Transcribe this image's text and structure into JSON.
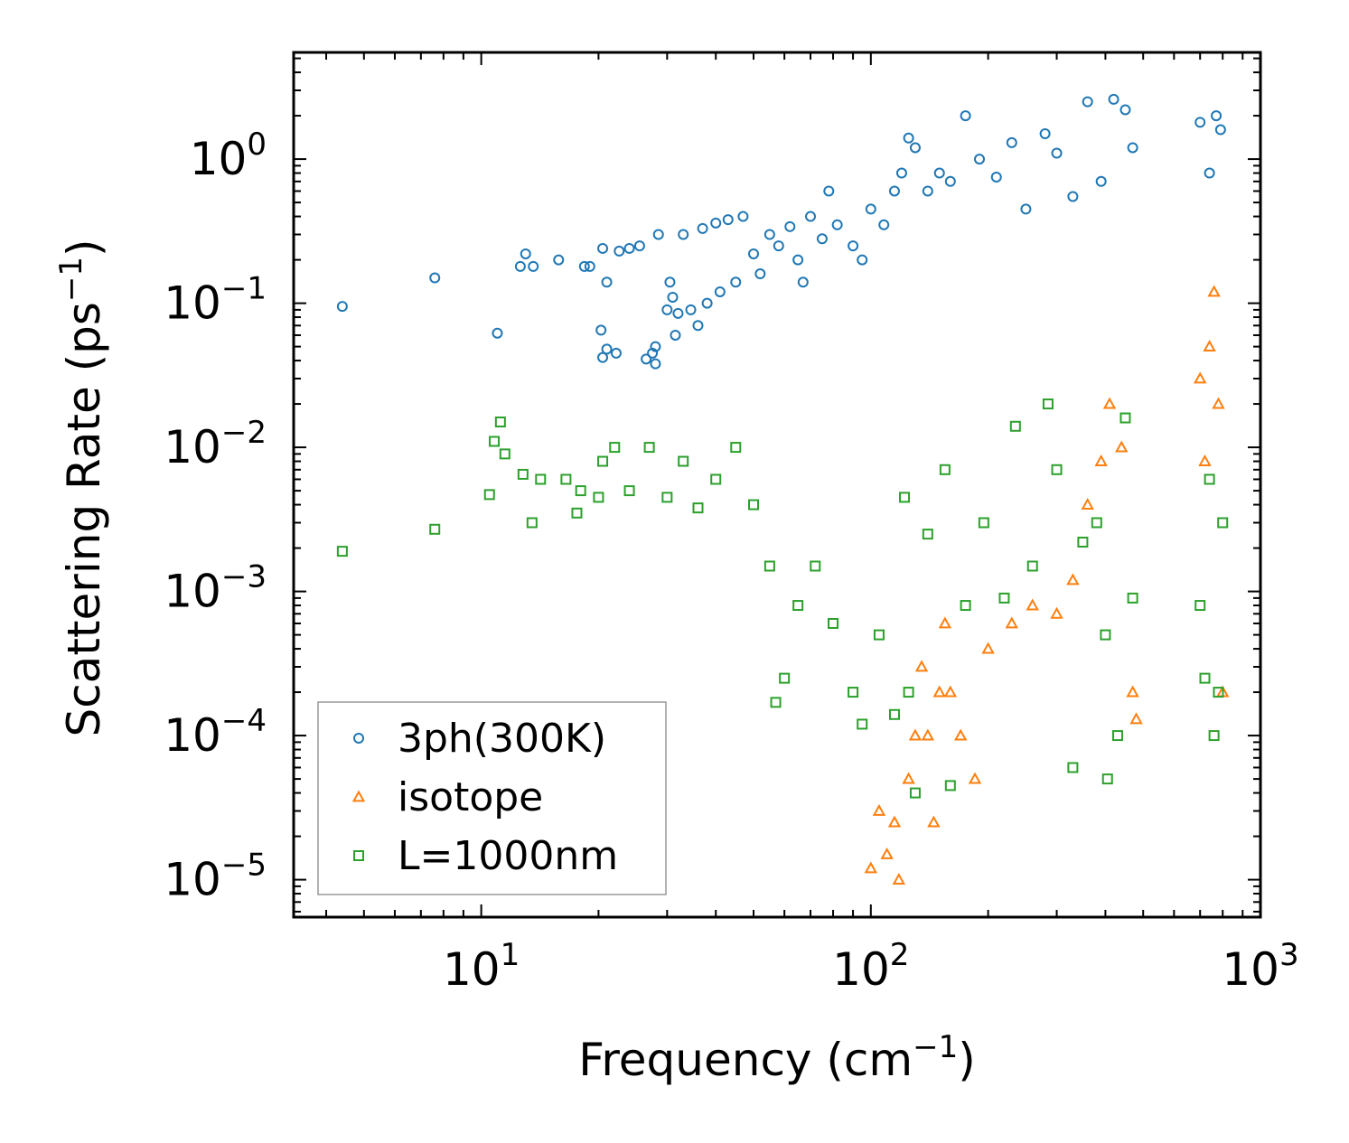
{
  "chart_data": {
    "type": "scatter",
    "title": "",
    "xlabel": "Frequency (cm",
    "xlabel_sup": "−1",
    "xlabel_end": ")",
    "ylabel": "Scattering Rate (ps",
    "ylabel_sup": "−1",
    "ylabel_end": ")",
    "xscale": "log",
    "yscale": "log",
    "xlim": [
      3.3,
      1000
    ],
    "ylim": [
      5.5e-06,
      5.5
    ],
    "xticks": [
      {
        "value": 10,
        "base": "10",
        "exp": "1"
      },
      {
        "value": 100,
        "base": "10",
        "exp": "2"
      },
      {
        "value": 1000,
        "base": "10",
        "exp": "3"
      }
    ],
    "yticks": [
      {
        "value": 1e-05,
        "base": "10",
        "exp": "−5"
      },
      {
        "value": 0.0001,
        "base": "10",
        "exp": "−4"
      },
      {
        "value": 0.001,
        "base": "10",
        "exp": "−3"
      },
      {
        "value": 0.01,
        "base": "10",
        "exp": "−2"
      },
      {
        "value": 0.1,
        "base": "10",
        "exp": "−1"
      },
      {
        "value": 1,
        "base": "10",
        "exp": "0"
      }
    ],
    "legend_position": "lower-left",
    "series": [
      {
        "name": "3ph(300K)",
        "marker": "circle",
        "color": "#1f77b4",
        "points": [
          [
            4.4,
            0.095
          ],
          [
            7.6,
            0.15
          ],
          [
            11.0,
            0.062
          ],
          [
            12.6,
            0.18
          ],
          [
            13.0,
            0.22
          ],
          [
            13.6,
            0.18
          ],
          [
            15.8,
            0.2
          ],
          [
            18.4,
            0.18
          ],
          [
            19.0,
            0.18
          ],
          [
            20.5,
            0.24
          ],
          [
            21.0,
            0.14
          ],
          [
            20.3,
            0.065
          ],
          [
            20.5,
            0.042
          ],
          [
            21.0,
            0.048
          ],
          [
            22.2,
            0.045
          ],
          [
            22.6,
            0.23
          ],
          [
            24.0,
            0.24
          ],
          [
            25.5,
            0.25
          ],
          [
            26.5,
            0.041
          ],
          [
            27.5,
            0.045
          ],
          [
            28.0,
            0.038
          ],
          [
            28.0,
            0.05
          ],
          [
            28.5,
            0.3
          ],
          [
            30.0,
            0.09
          ],
          [
            30.5,
            0.14
          ],
          [
            31.0,
            0.11
          ],
          [
            31.5,
            0.06
          ],
          [
            32.0,
            0.085
          ],
          [
            33.0,
            0.3
          ],
          [
            34.5,
            0.09
          ],
          [
            36.0,
            0.07
          ],
          [
            37.0,
            0.33
          ],
          [
            38.0,
            0.1
          ],
          [
            40.0,
            0.36
          ],
          [
            41.0,
            0.12
          ],
          [
            43.0,
            0.38
          ],
          [
            45.0,
            0.14
          ],
          [
            47.0,
            0.4
          ],
          [
            50.0,
            0.22
          ],
          [
            52.0,
            0.16
          ],
          [
            55.0,
            0.3
          ],
          [
            58.0,
            0.25
          ],
          [
            62.0,
            0.34
          ],
          [
            65.0,
            0.2
          ],
          [
            67.0,
            0.14
          ],
          [
            70.0,
            0.4
          ],
          [
            75.0,
            0.28
          ],
          [
            78.0,
            0.6
          ],
          [
            82.0,
            0.35
          ],
          [
            90.0,
            0.25
          ],
          [
            95.0,
            0.2
          ],
          [
            100.0,
            0.45
          ],
          [
            108.0,
            0.35
          ],
          [
            115.0,
            0.6
          ],
          [
            120.0,
            0.8
          ],
          [
            125.0,
            1.4
          ],
          [
            130.0,
            1.2
          ],
          [
            140.0,
            0.6
          ],
          [
            150.0,
            0.8
          ],
          [
            160.0,
            0.7
          ],
          [
            175.0,
            2.0
          ],
          [
            190.0,
            1.0
          ],
          [
            210.0,
            0.75
          ],
          [
            230.0,
            1.3
          ],
          [
            250.0,
            0.45
          ],
          [
            280.0,
            1.5
          ],
          [
            300.0,
            1.1
          ],
          [
            330.0,
            0.55
          ],
          [
            360.0,
            2.5
          ],
          [
            390.0,
            0.7
          ],
          [
            420.0,
            2.6
          ],
          [
            450.0,
            2.2
          ],
          [
            470.0,
            1.2
          ],
          [
            700.0,
            1.8
          ],
          [
            740.0,
            0.8
          ],
          [
            770.0,
            2.0
          ],
          [
            790.0,
            1.6
          ]
        ]
      },
      {
        "name": "isotope",
        "marker": "triangle",
        "color": "#ff7f0e",
        "points": [
          [
            100.0,
            1.2e-05
          ],
          [
            105.0,
            3e-05
          ],
          [
            110.0,
            1.5e-05
          ],
          [
            115.0,
            2.5e-05
          ],
          [
            118.0,
            1e-05
          ],
          [
            125.0,
            5e-05
          ],
          [
            130.0,
            0.0001
          ],
          [
            135.0,
            0.0003
          ],
          [
            140.0,
            0.0001
          ],
          [
            145.0,
            2.5e-05
          ],
          [
            150.0,
            0.0002
          ],
          [
            155.0,
            0.0006
          ],
          [
            160.0,
            0.0002
          ],
          [
            170.0,
            0.0001
          ],
          [
            185.0,
            5e-05
          ],
          [
            200.0,
            0.0004
          ],
          [
            230.0,
            0.0006
          ],
          [
            260.0,
            0.0008
          ],
          [
            300.0,
            0.0007
          ],
          [
            330.0,
            0.0012
          ],
          [
            360.0,
            0.004
          ],
          [
            390.0,
            0.008
          ],
          [
            410.0,
            0.02
          ],
          [
            440.0,
            0.01
          ],
          [
            470.0,
            0.0002
          ],
          [
            480.0,
            0.00013
          ],
          [
            700.0,
            0.03
          ],
          [
            720.0,
            0.008
          ],
          [
            740.0,
            0.05
          ],
          [
            760.0,
            0.12
          ],
          [
            780.0,
            0.02
          ],
          [
            800.0,
            0.0002
          ]
        ]
      },
      {
        "name": "L=1000nm",
        "marker": "square",
        "color": "#2ca02c",
        "points": [
          [
            4.4,
            0.0019
          ],
          [
            7.6,
            0.0027
          ],
          [
            10.5,
            0.0047
          ],
          [
            10.8,
            0.011
          ],
          [
            11.2,
            0.015
          ],
          [
            11.5,
            0.009
          ],
          [
            12.8,
            0.0065
          ],
          [
            13.5,
            0.003
          ],
          [
            14.2,
            0.006
          ],
          [
            16.5,
            0.006
          ],
          [
            17.6,
            0.0035
          ],
          [
            18.0,
            0.005
          ],
          [
            20.0,
            0.0045
          ],
          [
            20.5,
            0.008
          ],
          [
            22.0,
            0.01
          ],
          [
            24.0,
            0.005
          ],
          [
            27.0,
            0.01
          ],
          [
            30.0,
            0.0045
          ],
          [
            33.0,
            0.008
          ],
          [
            36.0,
            0.0038
          ],
          [
            40.0,
            0.006
          ],
          [
            45.0,
            0.01
          ],
          [
            50.0,
            0.004
          ],
          [
            55.0,
            0.0015
          ],
          [
            57.0,
            0.00017
          ],
          [
            60.0,
            0.00025
          ],
          [
            65.0,
            0.0008
          ],
          [
            72.0,
            0.0015
          ],
          [
            80.0,
            0.0006
          ],
          [
            90.0,
            0.0002
          ],
          [
            95.0,
            0.00012
          ],
          [
            105.0,
            0.0005
          ],
          [
            115.0,
            0.00014
          ],
          [
            122.0,
            0.0045
          ],
          [
            125.0,
            0.0002
          ],
          [
            130.0,
            4e-05
          ],
          [
            140.0,
            0.0025
          ],
          [
            155.0,
            0.007
          ],
          [
            160.0,
            4.5e-05
          ],
          [
            175.0,
            0.0008
          ],
          [
            195.0,
            0.003
          ],
          [
            220.0,
            0.0009
          ],
          [
            235.0,
            0.014
          ],
          [
            260.0,
            0.0015
          ],
          [
            285.0,
            0.02
          ],
          [
            300.0,
            0.007
          ],
          [
            330.0,
            6e-05
          ],
          [
            350.0,
            0.0022
          ],
          [
            380.0,
            0.003
          ],
          [
            400.0,
            0.0005
          ],
          [
            405.0,
            5e-05
          ],
          [
            430.0,
            0.0001
          ],
          [
            450.0,
            0.016
          ],
          [
            470.0,
            0.0009
          ],
          [
            700.0,
            0.0008
          ],
          [
            720.0,
            0.00025
          ],
          [
            740.0,
            0.006
          ],
          [
            760.0,
            0.0001
          ],
          [
            780.0,
            0.0002
          ],
          [
            800.0,
            0.003
          ]
        ]
      }
    ]
  }
}
